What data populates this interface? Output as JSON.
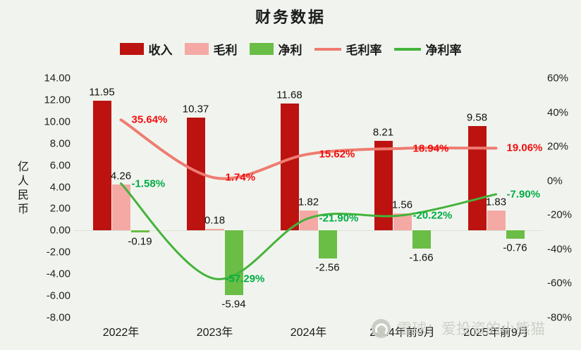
{
  "title": "财务数据",
  "watermark": {
    "text": "雪球：爱投资的小熊猫",
    "icon": "xueqiu-snowball-logo"
  },
  "colors": {
    "background": "#f1f4ee",
    "revenue_bar": "#bc1310",
    "gross_profit_bar": "#f4a9a5",
    "net_profit_bar": "#6abd45",
    "gross_margin_line": "#ee7c72",
    "net_margin_line": "#44b33c",
    "gross_margin_label": "#f20d0d",
    "net_margin_label": "#00ad45"
  },
  "legend": [
    {
      "key": "revenue",
      "label": "收入",
      "type": "bar",
      "color": "#bc1310"
    },
    {
      "key": "gross-profit",
      "label": "毛利",
      "type": "bar",
      "color": "#f4a9a5"
    },
    {
      "key": "net-profit",
      "label": "净利",
      "type": "bar",
      "color": "#6abd45"
    },
    {
      "key": "gross-margin",
      "label": "毛利率",
      "type": "line",
      "color": "#ee7c72"
    },
    {
      "key": "net-margin",
      "label": "净利率",
      "type": "line",
      "color": "#44b33c"
    }
  ],
  "chart_data": {
    "type": "bar+line",
    "title": "财务数据",
    "categories": [
      "2022年",
      "2023年",
      "2024年",
      "2024年前9月",
      "2025年前9月"
    ],
    "bar_series": [
      {
        "key": "revenue",
        "name": "收入",
        "color": "#bc1310",
        "values": [
          11.95,
          10.37,
          11.68,
          8.21,
          9.58
        ],
        "labels": [
          "11.95",
          "10.37",
          "11.68",
          "8.21",
          "9.58"
        ]
      },
      {
        "key": "gross-profit",
        "name": "毛利",
        "color": "#f4a9a5",
        "values": [
          4.26,
          0.18,
          1.82,
          1.56,
          1.83
        ],
        "labels": [
          "4.26",
          "0.18",
          "1.82",
          "1.56",
          "1.83"
        ]
      },
      {
        "key": "net-profit",
        "name": "净利",
        "color": "#6abd45",
        "values": [
          -0.19,
          -5.94,
          -2.56,
          -1.66,
          -0.76
        ],
        "labels": [
          "-0.19",
          "-5.94",
          "-2.56",
          "-1.66",
          "-0.76"
        ]
      }
    ],
    "line_series": [
      {
        "key": "gross-margin",
        "name": "毛利率",
        "color": "#ee7c72",
        "label_color": "#f20d0d",
        "values": [
          35.64,
          1.74,
          15.62,
          18.94,
          19.06
        ],
        "labels": [
          "35.64%",
          "1.74%",
          "15.62%",
          "18.94%",
          "19.06%"
        ]
      },
      {
        "key": "net-margin",
        "name": "净利率",
        "color": "#44b33c",
        "label_color": "#00ad45",
        "values": [
          -1.58,
          -57.29,
          -21.9,
          -20.22,
          -7.9
        ],
        "labels": [
          "-1.58%",
          "-57.29%",
          "-21.90%",
          "-20.22%",
          "-7.90%"
        ]
      }
    ],
    "left_axis": {
      "title": "亿人民币",
      "min": -8,
      "max": 14,
      "tick_step": 2,
      "ticks": [
        "14.00",
        "12.00",
        "10.00",
        "8.00",
        "6.00",
        "4.00",
        "2.00",
        "0.00",
        "-2.00",
        "-4.00",
        "-6.00",
        "-8.00"
      ]
    },
    "right_axis": {
      "min": -80,
      "max": 60,
      "tick_step": 20,
      "ticks": [
        "60%",
        "40%",
        "20%",
        "0%",
        "-20%",
        "-40%",
        "-60%",
        "-80%"
      ]
    },
    "grid": false,
    "legend_position": "top"
  }
}
